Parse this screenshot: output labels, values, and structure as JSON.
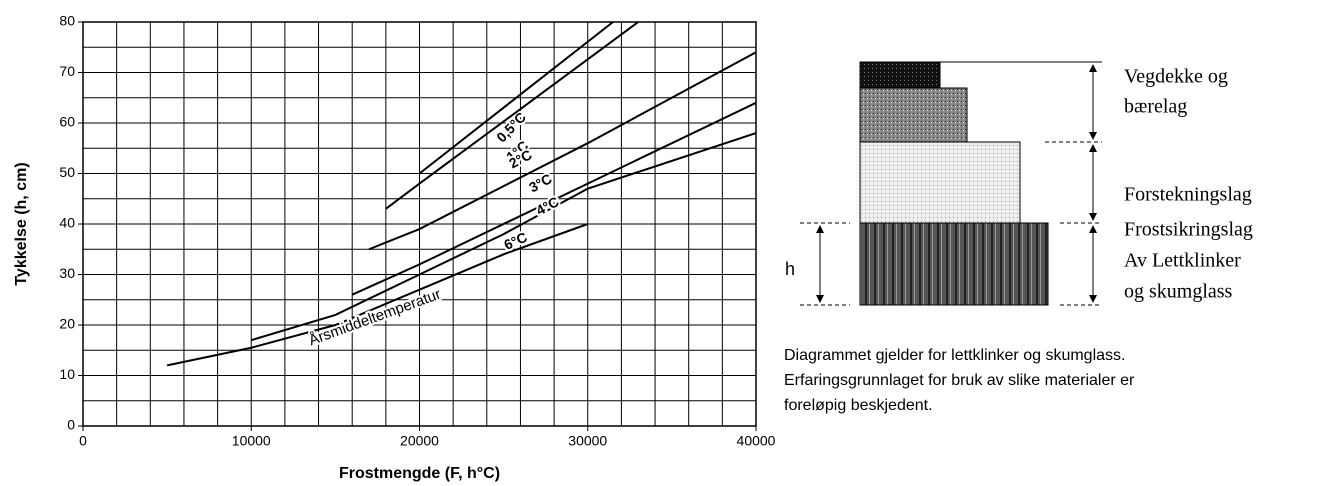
{
  "chart_data": {
    "type": "line",
    "xlabel": "Frostmengde (F, h°C)",
    "ylabel": "Tykkelse (h, cm)",
    "annotation": "Årsmiddeltemperatur",
    "xlim": [
      0,
      40000
    ],
    "ylim": [
      0,
      80
    ],
    "xticks": [
      0,
      10000,
      20000,
      30000,
      40000
    ],
    "yticks": [
      0,
      10,
      20,
      30,
      40,
      50,
      60,
      70,
      80
    ],
    "grid": true,
    "xgrid_step": 2000,
    "ygrid_step": 5,
    "series": [
      {
        "name": "0,5°C",
        "color": "#000000",
        "x": [
          20000,
          31500
        ],
        "values": [
          50,
          80
        ]
      },
      {
        "name": "1°C",
        "color": "#000000",
        "x": [
          18000,
          20000,
          33000
        ],
        "values": [
          43,
          48,
          80
        ]
      },
      {
        "name": "2°C",
        "color": "#000000",
        "x": [
          17000,
          20000,
          30000,
          40000
        ],
        "values": [
          35,
          39,
          56,
          74
        ]
      },
      {
        "name": "3°C",
        "color": "#000000",
        "x": [
          16000,
          20000,
          30000,
          40000
        ],
        "values": [
          26,
          32,
          48,
          64
        ]
      },
      {
        "name": "4°C",
        "color": "#000000",
        "x": [
          10000,
          15000,
          20000,
          25000,
          30000,
          40000
        ],
        "values": [
          17,
          22,
          30,
          38,
          47,
          58
        ]
      },
      {
        "name": "6°C",
        "color": "#000000",
        "x": [
          5000,
          10000,
          15000,
          20000,
          25000,
          30000
        ],
        "values": [
          12,
          15.5,
          20,
          27,
          34,
          40
        ]
      }
    ]
  },
  "diagram": {
    "layers": [
      {
        "label": [
          "Vegdekke og",
          "bærelag"
        ]
      },
      {
        "label": [
          "Forstekningslag"
        ]
      },
      {
        "label": [
          "Frostsikringslag",
          "Av Lettklinker",
          "og skumglass"
        ]
      }
    ],
    "h_label": "h",
    "caption": [
      "Diagrammet gjelder for lettklinker og skumglass.",
      "Erfaringsgrunnlaget for bruk av slike materialer er",
      "foreløpig beskjedent."
    ]
  }
}
